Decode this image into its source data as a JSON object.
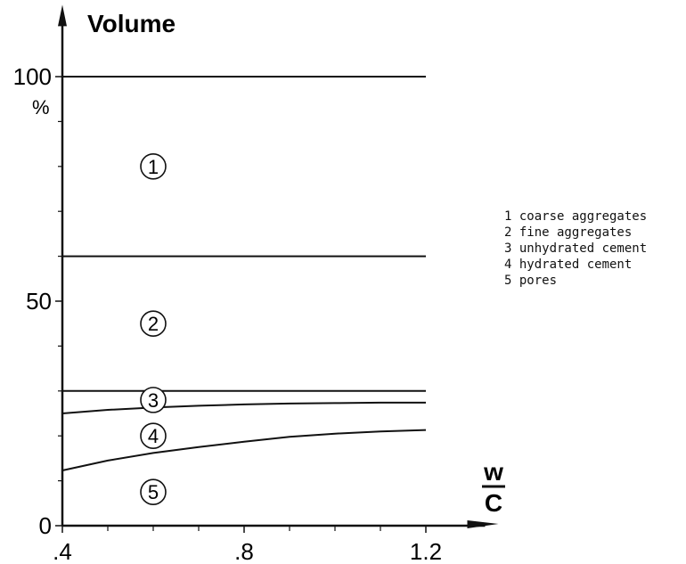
{
  "chart_data": {
    "type": "line",
    "title": "",
    "ylabel": "Volume",
    "yunit": "%",
    "xlabel_num": "w",
    "xlabel_den": "C",
    "xlim": [
      0.4,
      1.35
    ],
    "ylim": [
      0,
      116
    ],
    "x_ticks": [
      {
        "value": 0.4,
        "label": ".4"
      },
      {
        "value": 0.8,
        "label": ".8"
      },
      {
        "value": 1.2,
        "label": "1.2"
      }
    ],
    "x_minor_ticks": [
      0.5,
      0.6,
      0.7,
      0.9,
      1.0,
      1.1
    ],
    "y_ticks": [
      {
        "value": 0,
        "label": "0"
      },
      {
        "value": 50,
        "label": "50"
      },
      {
        "value": 100,
        "label": "100"
      }
    ],
    "y_minor_ticks": [
      10,
      20,
      30,
      40,
      60,
      70,
      80,
      90
    ],
    "series": [
      {
        "x": [
          0.4,
          1.2
        ],
        "y": [
          100,
          100
        ]
      },
      {
        "x": [
          0.4,
          1.2
        ],
        "y": [
          60,
          60
        ]
      },
      {
        "x": [
          0.4,
          1.2
        ],
        "y": [
          30,
          30
        ]
      },
      {
        "x": [
          0.4,
          0.5,
          0.6,
          0.7,
          0.8,
          0.9,
          1.0,
          1.1,
          1.2
        ],
        "y": [
          25,
          25.8,
          26.3,
          26.7,
          27.0,
          27.2,
          27.3,
          27.4,
          27.4
        ]
      },
      {
        "x": [
          0.4,
          0.5,
          0.6,
          0.7,
          0.8,
          0.9,
          1.0,
          1.1,
          1.2
        ],
        "y": [
          12.3,
          14.5,
          16.2,
          17.5,
          18.7,
          19.8,
          20.5,
          21.0,
          21.3
        ]
      }
    ],
    "regions": [
      {
        "label": "1",
        "x": 0.6,
        "y": 80
      },
      {
        "label": "2",
        "x": 0.6,
        "y": 45
      },
      {
        "label": "3",
        "x": 0.6,
        "y": 28
      },
      {
        "label": "4",
        "x": 0.6,
        "y": 20
      },
      {
        "label": "5",
        "x": 0.6,
        "y": 7.5
      }
    ],
    "legend": [
      "1 coarse aggregates",
      "2 fine aggregates",
      "3 unhydrated cement",
      "4 hydrated cement",
      "5 pores"
    ]
  }
}
